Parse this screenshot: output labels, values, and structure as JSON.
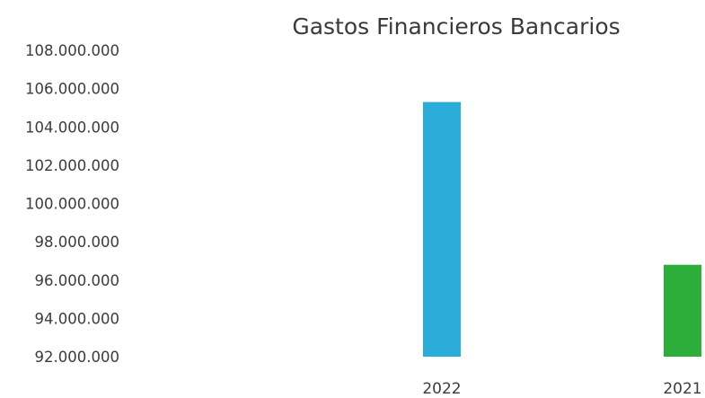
{
  "chart_data": {
    "type": "bar",
    "title": "Gastos Financieros Bancarios",
    "xlabel": "",
    "ylabel": "",
    "categories": [
      "2022",
      "2021"
    ],
    "values": [
      105300000,
      96800000
    ],
    "colors": [
      "#2aaed9",
      "#2dae3a"
    ],
    "ylim": [
      92000000,
      108000000
    ],
    "y_ticks": [
      108000000,
      106000000,
      104000000,
      102000000,
      100000000,
      98000000,
      96000000,
      94000000,
      92000000
    ],
    "y_tick_labels": [
      "108.000.000",
      "106.000.000",
      "104.000.000",
      "102.000.000",
      "100.000.000",
      "98.000.000",
      "96.000.000",
      "94.000.000",
      "92.000.000"
    ],
    "grid": false,
    "legend": "none"
  }
}
